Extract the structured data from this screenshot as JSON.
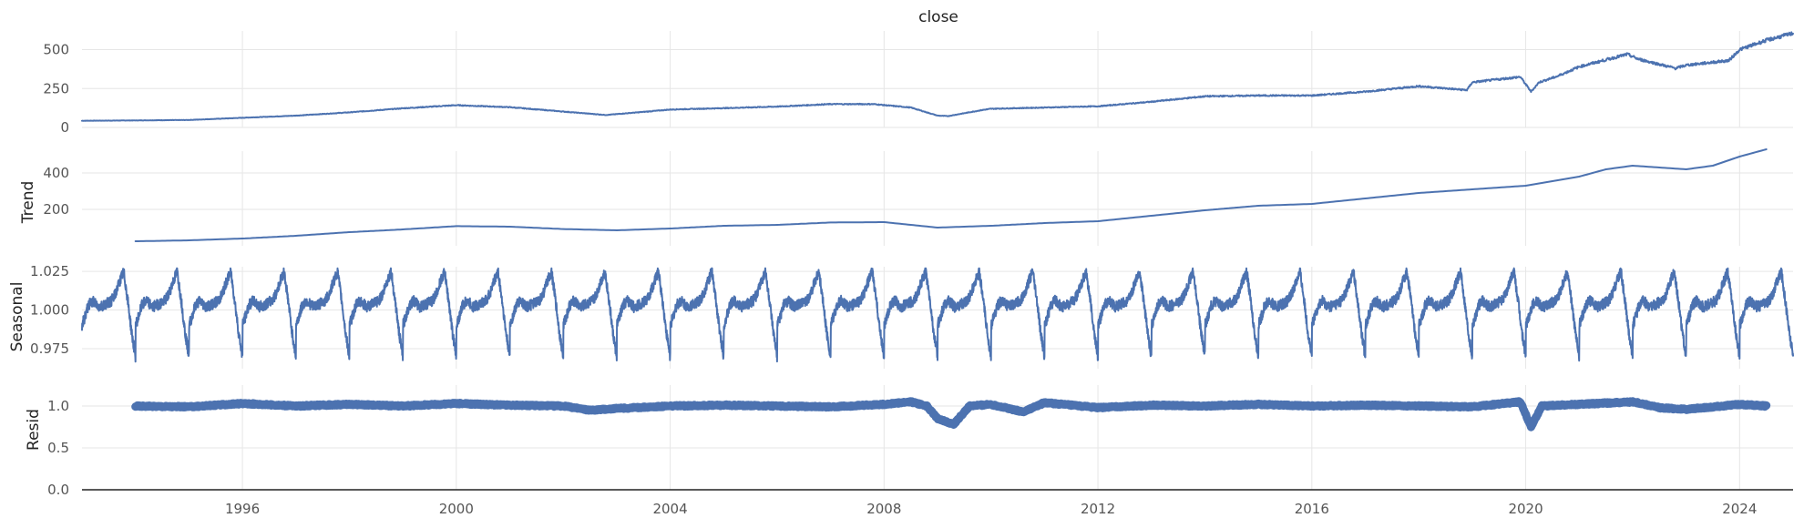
{
  "chart_data": {
    "type": "line",
    "layout": "stacked-panels",
    "x_range": [
      1993,
      2025
    ],
    "x_ticks": [
      "1996",
      "2000",
      "2004",
      "2008",
      "2012",
      "2016",
      "2020",
      "2024"
    ],
    "grid": true,
    "line_color": "#4c72b0",
    "panels": [
      {
        "id": "close",
        "title": "close",
        "ylabel": "",
        "ylim": [
          0,
          620
        ],
        "yticks": [
          "0",
          "250",
          "500"
        ],
        "series": {
          "x": [
            1993.0,
            1994,
            1995,
            1996,
            1997,
            1998,
            1999,
            2000,
            2001,
            2002,
            2002.8,
            2003.5,
            2004,
            2005,
            2006,
            2007,
            2007.8,
            2008.5,
            2009.0,
            2009.2,
            2009.8,
            2010,
            2011,
            2012,
            2013,
            2014,
            2015,
            2016,
            2017,
            2018,
            2018.9,
            2019,
            2019.9,
            2020.1,
            2020.25,
            2020.6,
            2021,
            2021.9,
            2022.1,
            2022.8,
            2023,
            2023.8,
            2024,
            2024.5,
            2025
          ],
          "y": [
            43,
            45,
            48,
            62,
            76,
            97,
            123,
            143,
            130,
            102,
            80,
            100,
            115,
            124,
            134,
            150,
            150,
            128,
            76,
            73,
            110,
            120,
            128,
            136,
            165,
            200,
            205,
            205,
            230,
            265,
            240,
            290,
            325,
            230,
            290,
            330,
            390,
            470,
            440,
            380,
            400,
            430,
            500,
            560,
            605
          ]
        }
      },
      {
        "id": "trend",
        "title": "",
        "ylabel": "Trend",
        "ylim": [
          0,
          520
        ],
        "yticks": [
          "200",
          "400"
        ],
        "series": {
          "x": [
            1994,
            1995,
            1996,
            1997,
            1998,
            1999,
            2000,
            2001,
            2002,
            2003,
            2004,
            2005,
            2006,
            2007,
            2008,
            2009,
            2010,
            2011,
            2012,
            2013,
            2014,
            2015,
            2016,
            2017,
            2018,
            2019,
            2020,
            2021,
            2021.5,
            2022,
            2022.5,
            2023,
            2023.5,
            2024,
            2024.5
          ],
          "y": [
            25,
            30,
            40,
            55,
            75,
            90,
            108,
            105,
            92,
            85,
            95,
            110,
            115,
            128,
            130,
            100,
            110,
            125,
            135,
            165,
            195,
            220,
            230,
            260,
            290,
            310,
            330,
            380,
            420,
            440,
            430,
            420,
            440,
            490,
            530
          ]
        }
      },
      {
        "id": "seasonal",
        "title": "",
        "ylabel": "Seasonal",
        "ylim": [
          0.962,
          1.028
        ],
        "yticks": [
          "0.975",
          "1.000",
          "1.025"
        ],
        "period": 1,
        "phase": [
          0,
          0.05,
          0.12,
          0.2,
          0.32,
          0.45,
          0.55,
          0.62,
          0.7,
          0.78,
          0.86,
          0.93,
          1.0
        ],
        "shape": [
          0.99,
          0.995,
          1.003,
          1.006,
          1.002,
          1.004,
          1.006,
          1.01,
          1.018,
          1.025,
          1.005,
          0.985,
          0.97
        ]
      },
      {
        "id": "resid",
        "title": "",
        "ylabel": "Resid",
        "ylim": [
          0,
          1.25
        ],
        "yticks": [
          "0.0",
          "0.5",
          "1.0"
        ],
        "series": {
          "x": [
            1994,
            1995,
            1996,
            1997,
            1998,
            1999,
            2000,
            2001,
            2002,
            2002.5,
            2003,
            2004,
            2005,
            2006,
            2007,
            2008,
            2008.5,
            2008.8,
            2009.0,
            2009.3,
            2009.6,
            2010,
            2010.6,
            2011,
            2012,
            2013,
            2014,
            2015,
            2016,
            2017,
            2018,
            2019,
            2019.9,
            2020.1,
            2020.3,
            2021,
            2022,
            2022.5,
            2023,
            2024,
            2024.5
          ],
          "y": [
            1.0,
            0.99,
            1.03,
            1.0,
            1.02,
            1.0,
            1.03,
            1.01,
            1.0,
            0.95,
            0.97,
            1.0,
            1.01,
            1.0,
            0.99,
            1.02,
            1.05,
            1.0,
            0.85,
            0.78,
            1.0,
            1.02,
            0.93,
            1.04,
            0.98,
            1.01,
            1.0,
            1.02,
            1.0,
            1.01,
            1.0,
            0.99,
            1.05,
            0.75,
            1.0,
            1.02,
            1.05,
            0.98,
            0.96,
            1.02,
            1.0
          ]
        }
      }
    ]
  }
}
